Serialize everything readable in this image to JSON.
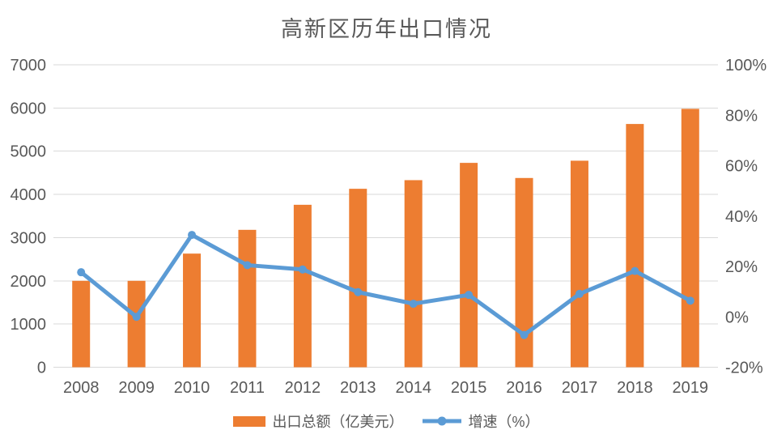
{
  "title": "高新区历年出口情况",
  "colors": {
    "bar": "#ED7D31",
    "line": "#5B9BD5",
    "grid": "#D9D9D9",
    "text": "#595959",
    "background": "#FFFFFF"
  },
  "chart_data": {
    "type": "combo (bar + line)",
    "title": "高新区历年出口情况",
    "categories": [
      "2008",
      "2009",
      "2010",
      "2011",
      "2012",
      "2013",
      "2014",
      "2015",
      "2016",
      "2017",
      "2018",
      "2019"
    ],
    "series": [
      {
        "name": "出口总额（亿美元）",
        "type": "bar",
        "axis": "left",
        "values": [
          2000,
          2000,
          2630,
          3180,
          3760,
          4130,
          4330,
          4730,
          4380,
          4780,
          5630,
          5980
        ]
      },
      {
        "name": "增速（%）",
        "type": "line",
        "axis": "right",
        "values": [
          17.7,
          0,
          32.5,
          20.5,
          18.8,
          9.8,
          5.2,
          8.7,
          -7.2,
          9.1,
          18.2,
          6.4
        ]
      }
    ],
    "left_axis": {
      "min": 0,
      "max": 7000,
      "step": 1000,
      "tick_labels": [
        "0",
        "1000",
        "2000",
        "3000",
        "4000",
        "5000",
        "6000",
        "7000"
      ]
    },
    "right_axis": {
      "min": -20,
      "max": 100,
      "step": 20,
      "tick_labels": [
        "-20%",
        "0%",
        "20%",
        "40%",
        "60%",
        "80%",
        "100%"
      ]
    },
    "grid": "horizontal gridlines on",
    "legend_position": "bottom",
    "xlabel": "",
    "ylabel": ""
  },
  "legend": {
    "bar_label": "出口总额（亿美元）",
    "line_label": "增速（%）"
  }
}
